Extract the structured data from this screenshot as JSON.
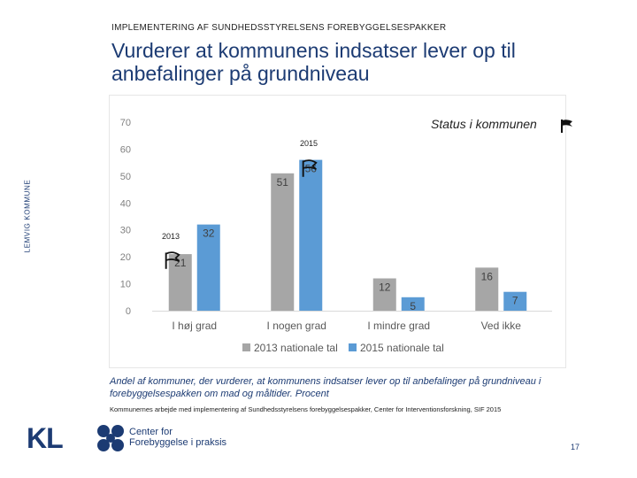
{
  "header": "IMPLEMENTERING AF SUNDHEDSSTYRELSENS FOREBYGGELSESPAKKER",
  "title": "Vurderer at kommunens indsatser lever op til anbefalinger på grundniveau",
  "side_label": "LEMVIG KOMMUNE",
  "status_label": "Status i kommunen",
  "year_2015": "2015",
  "year_2013": "2013",
  "caption": "Andel af kommuner, der vurderer, at kommunens indsatser lever op til anbefalinger på grundniveau i forebyggelsespakken om mad og måltider. Procent",
  "source": "Kommunernes arbejde med implementering af Sundhedsstyrelsens forebyggelsespakker, Center for Interventionsforskning, SIF 2015",
  "logo": {
    "kl": "KL",
    "center_line1": "Center for",
    "center_line2": "Forebyggelse i praksis"
  },
  "page_number": "17",
  "colors": {
    "series_2013": "#a6a6a6",
    "series_2015": "#5b9bd5",
    "title": "#1c3b73"
  },
  "chart_data": {
    "type": "bar",
    "categories": [
      "I høj grad",
      "I nogen grad",
      "I mindre grad",
      "Ved ikke"
    ],
    "series": [
      {
        "name": "2013 nationale tal",
        "values": [
          21,
          51,
          12,
          16
        ]
      },
      {
        "name": "2015 nationale tal",
        "values": [
          32,
          56,
          5,
          7
        ]
      }
    ],
    "y_ticks": [
      0,
      10,
      20,
      30,
      40,
      50,
      60,
      70
    ],
    "ylim": [
      0,
      70
    ],
    "legend": "bottom",
    "annotations": [
      {
        "label": "2015",
        "category": "I nogen grad",
        "series": "2015 nationale tal"
      },
      {
        "label": "2013",
        "category": "I høj grad",
        "series": "2013 nationale tal"
      }
    ]
  }
}
